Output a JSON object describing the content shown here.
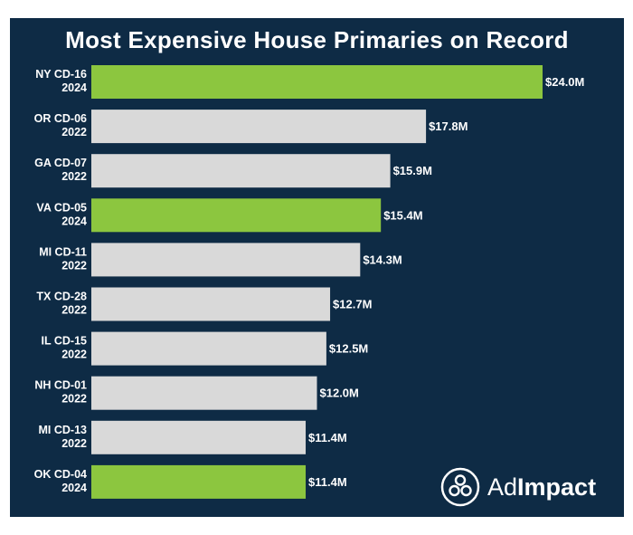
{
  "brand": {
    "name_light": "Ad",
    "name_bold": "Impact",
    "logo_icon": "adimpact-logo-icon"
  },
  "colors": {
    "background": "#0e2b45",
    "highlight": "#8cc63f",
    "default_bar": "#d9d9d9",
    "text": "#ffffff"
  },
  "chart_data": {
    "type": "bar",
    "orientation": "horizontal",
    "title": "Most Expensive House Primaries on Record",
    "categories": [
      [
        "NY CD-16",
        "2024"
      ],
      [
        "OR CD-06",
        "2022"
      ],
      [
        "GA CD-07",
        "2022"
      ],
      [
        "VA CD-05",
        "2024"
      ],
      [
        "MI CD-11",
        "2022"
      ],
      [
        "TX CD-28",
        "2022"
      ],
      [
        "IL CD-15",
        "2022"
      ],
      [
        "NH CD-01",
        "2022"
      ],
      [
        "MI CD-13",
        "2022"
      ],
      [
        "OK CD-04",
        "2024"
      ]
    ],
    "values": [
      24.0,
      17.8,
      15.9,
      15.4,
      14.3,
      12.7,
      12.5,
      12.0,
      11.4,
      11.4
    ],
    "value_labels": [
      "$24.0M",
      "$17.8M",
      "$15.9M",
      "$15.4M",
      "$14.3M",
      "$12.7M",
      "$12.5M",
      "$12.0M",
      "$11.4M",
      "$11.4M"
    ],
    "highlighted": [
      true,
      false,
      false,
      true,
      false,
      false,
      false,
      false,
      false,
      true
    ],
    "xlim": [
      0,
      24.0
    ],
    "xlabel": "",
    "ylabel": "",
    "grid": false,
    "legend": "none"
  }
}
